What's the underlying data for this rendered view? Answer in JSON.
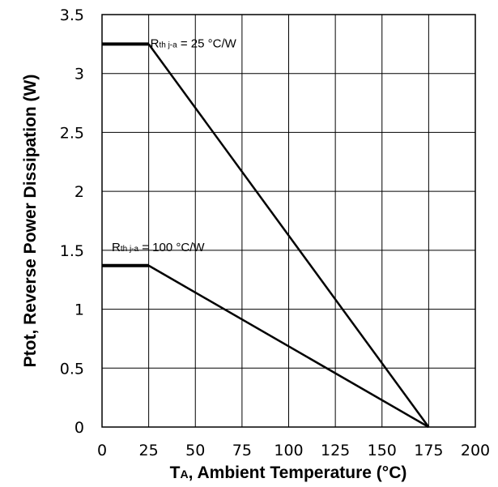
{
  "chart_data": {
    "type": "line",
    "xlabel": {
      "main": "T",
      "sub": "A",
      "rest": ", Ambient Temperature (°C)"
    },
    "ylabel": "Ptot, Reverse Power Dissipation (W)",
    "xlim": [
      0,
      200
    ],
    "ylim": [
      0,
      3.5
    ],
    "x_ticks": [
      "0",
      "25",
      "50",
      "75",
      "100",
      "125",
      "150",
      "175",
      "200"
    ],
    "y_ticks": [
      "0",
      "0.5",
      "1",
      "1.5",
      "2",
      "2.5",
      "3",
      "3.5"
    ],
    "grid": true,
    "series": [
      {
        "name": "R th j-a = 25 °C/W",
        "x": [
          0,
          25,
          175
        ],
        "y": [
          3.25,
          3.25,
          0
        ]
      },
      {
        "name": "R th j-a = 100 °C/W",
        "x": [
          0,
          25,
          175
        ],
        "y": [
          1.37,
          1.37,
          0
        ]
      }
    ],
    "annotations": [
      {
        "prefix": "R",
        "sub": "th j-a",
        "text": " = 25 °C/W"
      },
      {
        "prefix": "R",
        "sub": "th j-a",
        "text": " = 100 °C/W"
      }
    ]
  }
}
